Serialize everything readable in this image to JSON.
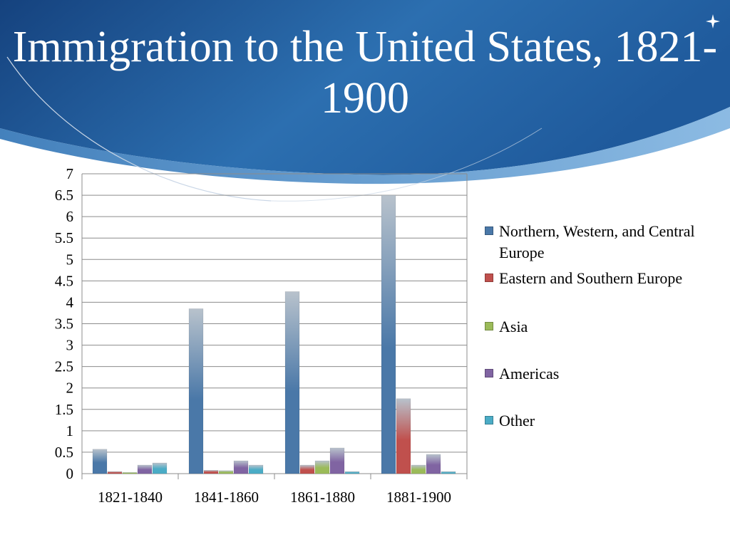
{
  "slide": {
    "title": "Immigration to the United States, 1821-1900"
  },
  "colors": {
    "header_dark": "#1b4a8a",
    "header_light": "#3a86c8",
    "grid": "#8c8c8c",
    "series": [
      "#4a78a8",
      "#c0504d",
      "#9bbb59",
      "#8064a2",
      "#4bacc6"
    ]
  },
  "chart_data": {
    "type": "bar",
    "title": "",
    "xlabel": "",
    "ylabel": "",
    "categories": [
      "1821-1840",
      "1841-1860",
      "1861-1880",
      "1881-1900"
    ],
    "ylim": [
      0,
      7
    ],
    "yticks": [
      "0",
      "0.5",
      "1",
      "1.5",
      "2",
      "2.5",
      "3",
      "3.5",
      "4",
      "4.5",
      "5",
      "5.5",
      "6",
      "6.5",
      "7"
    ],
    "grid": true,
    "legend_position": "right",
    "series": [
      {
        "name": "Northern, Western, and Central Europe",
        "values": [
          0.57,
          3.85,
          4.25,
          6.5
        ]
      },
      {
        "name": "Eastern and Southern Europe",
        "values": [
          0.05,
          0.08,
          0.2,
          1.75
        ]
      },
      {
        "name": "Asia",
        "values": [
          0.03,
          0.07,
          0.3,
          0.2
        ]
      },
      {
        "name": "Americas",
        "values": [
          0.2,
          0.3,
          0.6,
          0.45
        ]
      },
      {
        "name": "Other",
        "values": [
          0.25,
          0.2,
          0.05,
          0.05
        ]
      }
    ]
  }
}
